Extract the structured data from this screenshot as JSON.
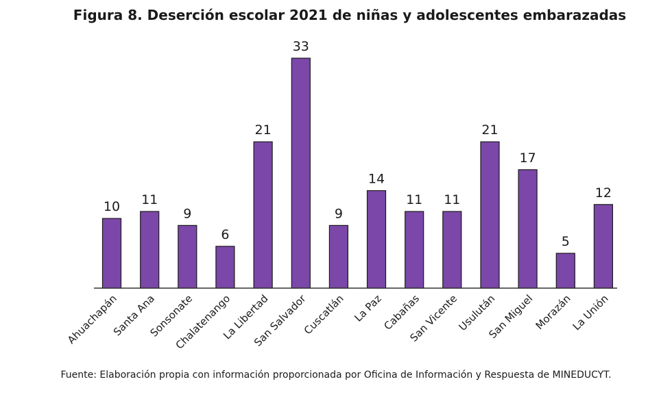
{
  "page": {
    "title": "Figura 8. Deserción escolar 2021 de niñas y adolescentes embarazadas",
    "source": "Fuente: Elaboración propia con información proporcionada por Oficina de Información y Respuesta de MINEDUCYT."
  },
  "colors": {
    "bar_fill": "#7b47a8",
    "bar_stroke": "#1a1a1a",
    "axis": "#333333",
    "text": "#1a1a1a"
  },
  "chart_data": {
    "type": "bar",
    "title": "Figura 8. Deserción escolar 2021 de niñas y adolescentes embarazadas",
    "xlabel": "",
    "ylabel": "",
    "ylim": [
      0,
      33
    ],
    "grid": false,
    "legend": "none",
    "categories": [
      "Ahuachapán",
      "Santa Ana",
      "Sonsonate",
      "Chalatenango",
      "La Libertad",
      "San Salvador",
      "Cuscatlán",
      "La Paz",
      "Cabañas",
      "San Vicente",
      "Usulután",
      "San Miguel",
      "Morazán",
      "La Unión"
    ],
    "values": [
      10,
      11,
      9,
      6,
      21,
      33,
      9,
      14,
      11,
      11,
      21,
      17,
      5,
      12
    ],
    "data_labels": [
      "10",
      "11",
      "9",
      "6",
      "21",
      "33",
      "9",
      "14",
      "11",
      "11",
      "21",
      "17",
      "5",
      "12"
    ]
  }
}
